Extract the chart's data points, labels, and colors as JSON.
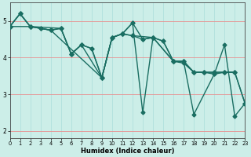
{
  "xlabel": "Humidex (Indice chaleur)",
  "xlim": [
    0,
    23
  ],
  "ylim": [
    1.8,
    5.5
  ],
  "bg_color": "#cceee8",
  "line_color": "#1a6e62",
  "yticks": [
    2,
    3,
    4,
    5
  ],
  "xticks": [
    0,
    1,
    2,
    3,
    4,
    5,
    6,
    7,
    8,
    9,
    10,
    11,
    12,
    13,
    14,
    15,
    16,
    17,
    18,
    19,
    20,
    21,
    22,
    23
  ],
  "series": [
    {
      "x": [
        0,
        1,
        2,
        3,
        4,
        5,
        6,
        7,
        8,
        9,
        10,
        11,
        12,
        13,
        14,
        15,
        16,
        17,
        18,
        19,
        20,
        21,
        22,
        23
      ],
      "y": [
        4.85,
        5.2,
        4.85,
        4.8,
        4.75,
        4.8,
        4.1,
        4.35,
        4.25,
        3.45,
        4.55,
        4.65,
        4.6,
        4.5,
        4.55,
        4.45,
        3.9,
        3.9,
        3.6,
        3.6,
        3.6,
        3.6,
        3.6,
        2.75
      ]
    },
    {
      "x": [
        0,
        1,
        2,
        3,
        4,
        5,
        6,
        7,
        8,
        9,
        10,
        11,
        12,
        13,
        14,
        15,
        16,
        17,
        18,
        19,
        20,
        21,
        22,
        23
      ],
      "y": [
        4.85,
        5.2,
        4.85,
        4.8,
        4.75,
        4.8,
        4.1,
        4.35,
        4.25,
        3.45,
        4.55,
        4.65,
        4.95,
        4.5,
        4.55,
        4.45,
        3.9,
        3.9,
        3.6,
        3.6,
        3.6,
        3.6,
        3.6,
        2.75
      ]
    },
    {
      "x": [
        0,
        1,
        2,
        5,
        6,
        7,
        9,
        10,
        11,
        12,
        13,
        14,
        16,
        17,
        18,
        20,
        21,
        22,
        23
      ],
      "y": [
        4.85,
        5.2,
        4.85,
        4.8,
        4.1,
        4.35,
        3.45,
        4.55,
        4.65,
        4.95,
        2.5,
        4.55,
        3.9,
        3.9,
        2.45,
        3.55,
        4.35,
        2.4,
        2.75
      ]
    },
    {
      "x": [
        0,
        2,
        4,
        9,
        10,
        11,
        12,
        14,
        16,
        17,
        18,
        19,
        20,
        21,
        22
      ],
      "y": [
        4.85,
        4.85,
        4.75,
        3.45,
        4.55,
        4.65,
        4.6,
        4.55,
        3.9,
        3.85,
        3.6,
        3.6,
        3.55,
        3.6,
        3.6
      ]
    }
  ],
  "marker": "D",
  "marker_size": 2.5,
  "line_width": 1.0
}
